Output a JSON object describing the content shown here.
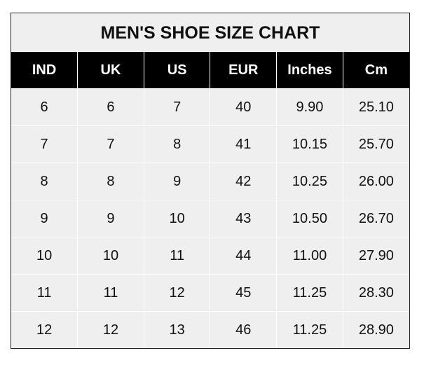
{
  "title": "MEN'S SHOE SIZE CHART",
  "columns": [
    "IND",
    "UK",
    "US",
    "EUR",
    "Inches",
    "Cm"
  ],
  "rows": [
    [
      "6",
      "6",
      "7",
      "40",
      "9.90",
      "25.10"
    ],
    [
      "7",
      "7",
      "8",
      "41",
      "10.15",
      "25.70"
    ],
    [
      "8",
      "8",
      "9",
      "42",
      "10.25",
      "26.00"
    ],
    [
      "9",
      "9",
      "10",
      "43",
      "10.50",
      "26.70"
    ],
    [
      "10",
      "10",
      "11",
      "44",
      "11.00",
      "27.90"
    ],
    [
      "11",
      "11",
      "12",
      "45",
      "11.25",
      "28.30"
    ],
    [
      "12",
      "12",
      "13",
      "46",
      "11.25",
      "28.90"
    ]
  ],
  "colors": {
    "header_bg": "#000000",
    "header_text": "#ffffff",
    "cell_bg": "#efefef"
  }
}
